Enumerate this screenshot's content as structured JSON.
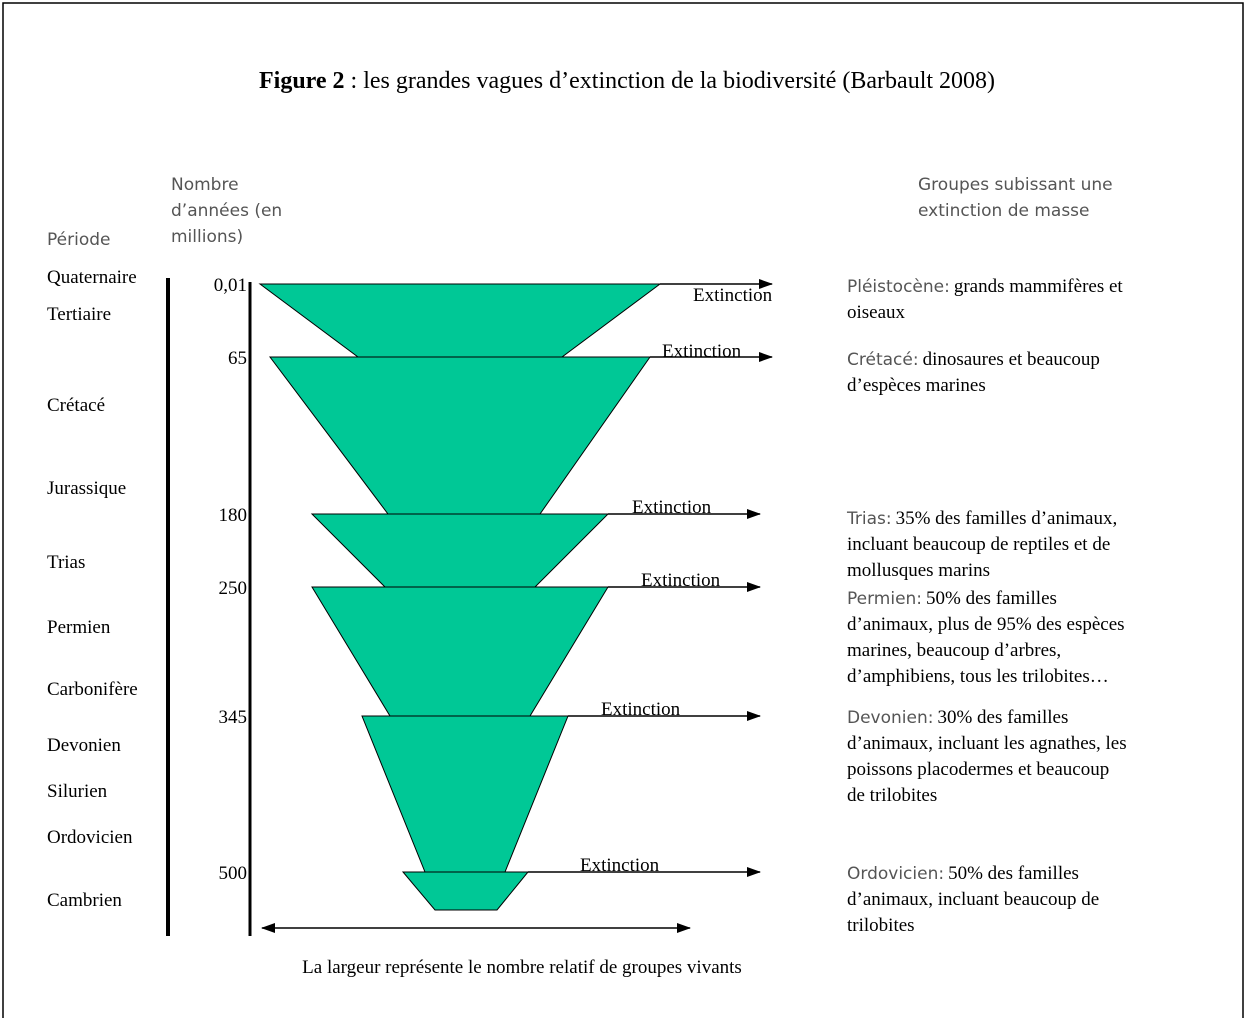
{
  "figure": {
    "title": {
      "label": "Figure 2",
      "text": " : les grandes vagues d’extinction de la biodiversité (Barbault 2008)"
    },
    "years_header": [
      "Nombre",
      "d’années (en",
      "millions)"
    ],
    "period_header": "Période",
    "groups_header": [
      "Groupes subissant une",
      "extinction de masse"
    ],
    "periods": [
      "Quaternaire",
      "Tertiaire",
      "Crétacé",
      "Jurassique",
      "Trias",
      "Permien",
      "Carbonifère",
      "Devonien",
      "Silurien",
      "Ordovicien",
      "Cambrien"
    ],
    "years": [
      "0,01",
      "65",
      "180",
      "250",
      "345",
      "500"
    ],
    "extinctions": [
      "Extinction",
      "Extinction",
      "Extinction",
      "Extinction",
      "Extinction",
      "Extinction"
    ],
    "groups": [
      {
        "name": "Pléistocène:",
        "lines": [
          "grands mammifères et",
          "oiseaux"
        ]
      },
      {
        "name": "Crétacé:",
        "lines": [
          "dinosaures et beaucoup",
          "d’espèces marines"
        ]
      },
      {
        "name": "Trias:",
        "lines": [
          "35% des familles d’animaux,",
          "incluant beaucoup de reptiles et de",
          "mollusques marins"
        ]
      },
      {
        "name": "Permien:",
        "lines": [
          "50% des familles",
          "d’animaux, plus de 95% des espèces",
          "marines, beaucoup d’arbres,",
          "d’amphibiens, tous les trilobites…"
        ]
      },
      {
        "name": "Devonien:",
        "lines": [
          "30% des familles",
          "d’animaux, incluant les agnathes, les",
          "poissons placodermes et beaucoup",
          "de trilobites"
        ]
      },
      {
        "name": "Ordovicien:",
        "lines": [
          "50% des familles",
          "d’animaux, incluant beaucoup de",
          "trilobites"
        ]
      }
    ],
    "footer": "La largeur représente le nombre relatif de groupes vivants"
  }
}
